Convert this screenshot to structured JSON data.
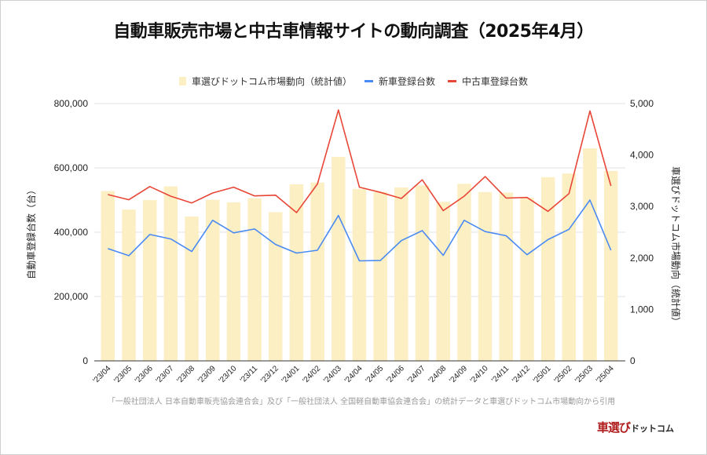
{
  "title": "自動車販売市場と中古車情報サイトの動向調査（2025年4月）",
  "legend": [
    {
      "label": "車選びドットコム市場動向（統計値）",
      "color": "#fcefc4",
      "kind": "box"
    },
    {
      "label": "新車登録台数",
      "color": "#4a8af4",
      "kind": "line"
    },
    {
      "label": "中古車登録台数",
      "color": "#e84637",
      "kind": "line"
    }
  ],
  "source": "「一般社団法人 日本自動車販売協会連合会」及び「一般社団法人 全国軽自動車協会連合会」の統計データと車選びドットコム市場動向から引用",
  "logo": {
    "main": "車選び",
    "sub": "ドットコム"
  },
  "chart_data": {
    "type": "bar+line",
    "title": "自動車販売市場と中古車情報サイトの動向調査（2025年4月）",
    "categories": [
      "'23/04",
      "'23/05",
      "'23/06",
      "'23/07",
      "'23/08",
      "'23/09",
      "'23/10",
      "'23/11",
      "'23/12",
      "'24/01",
      "'24/02",
      "'24/03",
      "'24/04",
      "'24/05",
      "'24/06",
      "'24/07",
      "'24/08",
      "'24/09",
      "'24/10",
      "'24/11",
      "'24/12",
      "'25/01",
      "'25/02",
      "'25/03",
      "'25/04"
    ],
    "series": [
      {
        "name": "車選びドットコム市場動向（統計値）",
        "type": "bar",
        "axis": "right",
        "color": "#fcefc4",
        "values": [
          3300,
          2940,
          3125,
          3390,
          2805,
          3130,
          3080,
          3160,
          2890,
          3430,
          3465,
          3965,
          3340,
          3280,
          3370,
          3410,
          3090,
          3440,
          3280,
          3270,
          3170,
          3570,
          3640,
          4130,
          3690
        ]
      },
      {
        "name": "新車登録台数",
        "type": "line",
        "axis": "left",
        "color": "#4a8af4",
        "values": [
          349000,
          327000,
          393000,
          379000,
          340000,
          437000,
          398000,
          410000,
          362000,
          335000,
          344000,
          452000,
          311000,
          312000,
          374000,
          405000,
          328000,
          437000,
          402000,
          389000,
          330000,
          377000,
          409000,
          500000,
          344000
        ]
      },
      {
        "name": "中古車登録台数",
        "type": "line",
        "axis": "left",
        "color": "#e84637",
        "values": [
          517000,
          501000,
          542000,
          512000,
          491000,
          522000,
          540000,
          513000,
          515000,
          461000,
          550000,
          780000,
          540000,
          524000,
          505000,
          563000,
          467000,
          512000,
          573000,
          506000,
          508000,
          465000,
          520000,
          777000,
          544000
        ]
      }
    ],
    "left_axis": {
      "label": "自動車登録台数（台）",
      "range": [
        0,
        800000
      ],
      "ticks": [
        0,
        200000,
        400000,
        600000,
        800000
      ],
      "tick_labels": [
        "0",
        "200,000",
        "400,000",
        "600,000",
        "800,000"
      ]
    },
    "right_axis": {
      "label": "車選びドットコム市場動向（統計値）",
      "range": [
        0,
        5000
      ],
      "ticks": [
        0,
        1000,
        2000,
        3000,
        4000,
        5000
      ],
      "tick_labels": [
        "0",
        "1,000",
        "2,000",
        "3,000",
        "4,000",
        "5,000"
      ]
    },
    "grid": true,
    "legend_position": "top"
  }
}
